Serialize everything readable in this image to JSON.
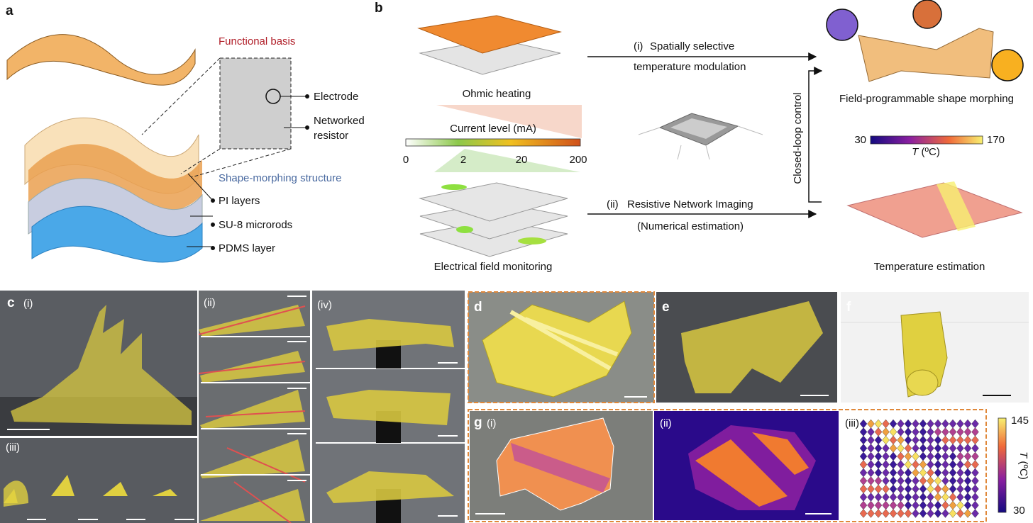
{
  "panel_a": {
    "label": "a",
    "functional_basis": "Functional basis",
    "electrode": "Electrode",
    "networked_resistor": [
      "Networked",
      "resistor"
    ],
    "shape_morphing_structure": "Shape-morphing structure",
    "pi_layers": "PI layers",
    "su8_microrods": "SU-8 microrods",
    "pdms_layer": "PDMS layer"
  },
  "panel_b": {
    "label": "b",
    "ohmic_heating": "Ohmic heating",
    "current_level": "Current level (mA)",
    "current_ticks": [
      0,
      2,
      20,
      200
    ],
    "electrical_field_monitoring": "Electrical field monitoring",
    "path_i": {
      "label": "(i)",
      "text": [
        "Spatially selective",
        "temperature modulation"
      ]
    },
    "path_ii": {
      "label": "(ii)",
      "text": [
        "Resistive Network Imaging",
        "(Numerical estimation)"
      ]
    },
    "closed_loop": "Closed-loop control",
    "shape_morphing": "Field-programmable shape morphing",
    "temperature_scale": {
      "min": 30,
      "max": 170,
      "symbol": "T",
      "unit": "(ºC)"
    },
    "temperature_estimation": "Temperature estimation"
  },
  "panel_c": {
    "label": "c",
    "subpanels": [
      "(i)",
      "(ii)",
      "(iii)",
      "(iv)"
    ]
  },
  "panel_d": {
    "label": "d"
  },
  "panel_e": {
    "label": "e"
  },
  "panel_f": {
    "label": "f"
  },
  "panel_g": {
    "label": "g",
    "subpanels": [
      "(i)",
      "(ii)",
      "(iii)"
    ],
    "temperature_scale": {
      "max": 145,
      "min": 30,
      "symbol": "T",
      "unit": "(ºC)"
    }
  }
}
